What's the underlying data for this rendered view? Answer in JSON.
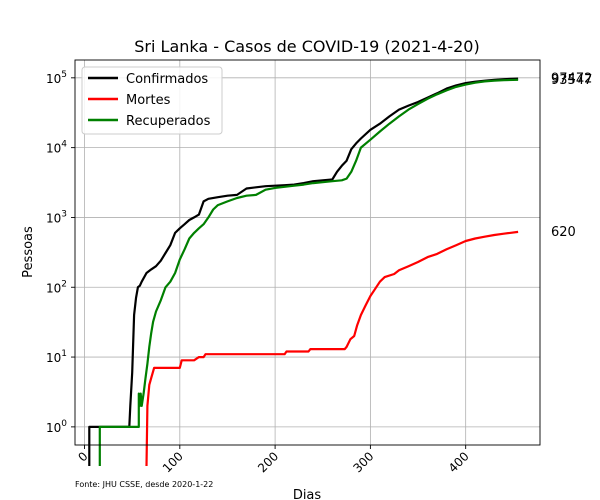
{
  "chart_data": {
    "type": "line",
    "title": "Sri Lanka - Casos de COVID-19 (2021-4-20)",
    "xlabel": "Dias",
    "ylabel": "Pessoas",
    "source_note": "Fonte: JHU CSSE, desde 2020-1-22",
    "xlim": [
      -10,
      478
    ],
    "ylim": [
      0.55,
      180000
    ],
    "yscale": "log",
    "grid": true,
    "legend_position": "top-left",
    "x_ticks": [
      0,
      100,
      200,
      300,
      400
    ],
    "y_ticks": [
      {
        "value": 1,
        "base": "10",
        "exp": "0"
      },
      {
        "value": 10,
        "base": "10",
        "exp": "1"
      },
      {
        "value": 100,
        "base": "10",
        "exp": "2"
      },
      {
        "value": 1000,
        "base": "10",
        "exp": "3"
      },
      {
        "value": 10000,
        "base": "10",
        "exp": "4"
      },
      {
        "value": 100000,
        "base": "10",
        "exp": "5"
      }
    ],
    "end_labels": [
      {
        "series": "confirmados",
        "text": "97472",
        "value": 97472
      },
      {
        "series": "recuperados",
        "text": "93547",
        "value": 93547
      },
      {
        "series": "mortes",
        "text": "620",
        "value": 620
      }
    ],
    "series": [
      {
        "id": "confirmados",
        "name": "Confirmados",
        "color": "#000000",
        "points": [
          [
            5,
            0
          ],
          [
            5,
            1
          ],
          [
            47,
            1
          ],
          [
            48,
            2
          ],
          [
            50,
            6
          ],
          [
            52,
            40
          ],
          [
            54,
            70
          ],
          [
            56,
            100
          ],
          [
            58,
            105
          ],
          [
            60,
            120
          ],
          [
            65,
            160
          ],
          [
            70,
            180
          ],
          [
            75,
            200
          ],
          [
            80,
            240
          ],
          [
            85,
            310
          ],
          [
            90,
            400
          ],
          [
            95,
            600
          ],
          [
            100,
            700
          ],
          [
            105,
            800
          ],
          [
            110,
            920
          ],
          [
            115,
            1000
          ],
          [
            120,
            1100
          ],
          [
            125,
            1700
          ],
          [
            130,
            1850
          ],
          [
            140,
            1950
          ],
          [
            150,
            2050
          ],
          [
            160,
            2100
          ],
          [
            170,
            2600
          ],
          [
            180,
            2700
          ],
          [
            190,
            2800
          ],
          [
            200,
            2850
          ],
          [
            210,
            2900
          ],
          [
            220,
            2950
          ],
          [
            230,
            3100
          ],
          [
            240,
            3300
          ],
          [
            250,
            3400
          ],
          [
            260,
            3500
          ],
          [
            265,
            4500
          ],
          [
            270,
            5500
          ],
          [
            275,
            6500
          ],
          [
            280,
            9500
          ],
          [
            285,
            11500
          ],
          [
            290,
            13500
          ],
          [
            300,
            18000
          ],
          [
            310,
            22000
          ],
          [
            320,
            28000
          ],
          [
            330,
            35000
          ],
          [
            340,
            40000
          ],
          [
            350,
            45000
          ],
          [
            360,
            52000
          ],
          [
            370,
            60000
          ],
          [
            380,
            70000
          ],
          [
            390,
            78000
          ],
          [
            400,
            84000
          ],
          [
            410,
            88000
          ],
          [
            420,
            91000
          ],
          [
            430,
            93500
          ],
          [
            440,
            95500
          ],
          [
            455,
            97472
          ]
        ]
      },
      {
        "id": "mortes",
        "name": "Mortes",
        "color": "#ff0000",
        "points": [
          [
            65,
            0
          ],
          [
            66,
            2
          ],
          [
            68,
            4
          ],
          [
            70,
            5
          ],
          [
            73,
            7
          ],
          [
            100,
            7
          ],
          [
            102,
            9
          ],
          [
            115,
            9
          ],
          [
            120,
            10
          ],
          [
            125,
            10
          ],
          [
            127,
            11
          ],
          [
            210,
            11
          ],
          [
            212,
            12
          ],
          [
            235,
            12
          ],
          [
            237,
            13
          ],
          [
            273,
            13
          ],
          [
            275,
            14
          ],
          [
            279,
            18
          ],
          [
            283,
            20
          ],
          [
            286,
            28
          ],
          [
            290,
            40
          ],
          [
            295,
            55
          ],
          [
            300,
            75
          ],
          [
            305,
            95
          ],
          [
            310,
            120
          ],
          [
            315,
            140
          ],
          [
            325,
            155
          ],
          [
            330,
            175
          ],
          [
            340,
            200
          ],
          [
            350,
            230
          ],
          [
            360,
            270
          ],
          [
            370,
            300
          ],
          [
            380,
            350
          ],
          [
            390,
            400
          ],
          [
            400,
            460
          ],
          [
            410,
            500
          ],
          [
            420,
            530
          ],
          [
            430,
            560
          ],
          [
            440,
            585
          ],
          [
            455,
            620
          ]
        ]
      },
      {
        "id": "recuperados",
        "name": "Recuperados",
        "color": "#008000",
        "points": [
          [
            16,
            0
          ],
          [
            16,
            1
          ],
          [
            57,
            1
          ],
          [
            57,
            3
          ],
          [
            58,
            2
          ],
          [
            59,
            3
          ],
          [
            60,
            2
          ],
          [
            62,
            3
          ],
          [
            64,
            5
          ],
          [
            66,
            8
          ],
          [
            68,
            14
          ],
          [
            70,
            22
          ],
          [
            72,
            32
          ],
          [
            75,
            45
          ],
          [
            80,
            65
          ],
          [
            85,
            100
          ],
          [
            90,
            120
          ],
          [
            95,
            160
          ],
          [
            100,
            250
          ],
          [
            105,
            350
          ],
          [
            110,
            500
          ],
          [
            115,
            600
          ],
          [
            120,
            700
          ],
          [
            125,
            800
          ],
          [
            130,
            1000
          ],
          [
            135,
            1300
          ],
          [
            140,
            1500
          ],
          [
            150,
            1700
          ],
          [
            160,
            1900
          ],
          [
            170,
            2050
          ],
          [
            180,
            2100
          ],
          [
            190,
            2500
          ],
          [
            200,
            2650
          ],
          [
            210,
            2750
          ],
          [
            220,
            2850
          ],
          [
            230,
            2950
          ],
          [
            240,
            3100
          ],
          [
            250,
            3200
          ],
          [
            260,
            3300
          ],
          [
            270,
            3400
          ],
          [
            275,
            3600
          ],
          [
            280,
            4500
          ],
          [
            285,
            6500
          ],
          [
            290,
            10000
          ],
          [
            300,
            13000
          ],
          [
            310,
            17000
          ],
          [
            320,
            22000
          ],
          [
            330,
            28000
          ],
          [
            340,
            35000
          ],
          [
            350,
            42000
          ],
          [
            360,
            50000
          ],
          [
            370,
            58000
          ],
          [
            380,
            66000
          ],
          [
            390,
            74000
          ],
          [
            400,
            80000
          ],
          [
            410,
            85000
          ],
          [
            420,
            89000
          ],
          [
            430,
            91000
          ],
          [
            440,
            92500
          ],
          [
            455,
            93547
          ]
        ]
      }
    ]
  }
}
